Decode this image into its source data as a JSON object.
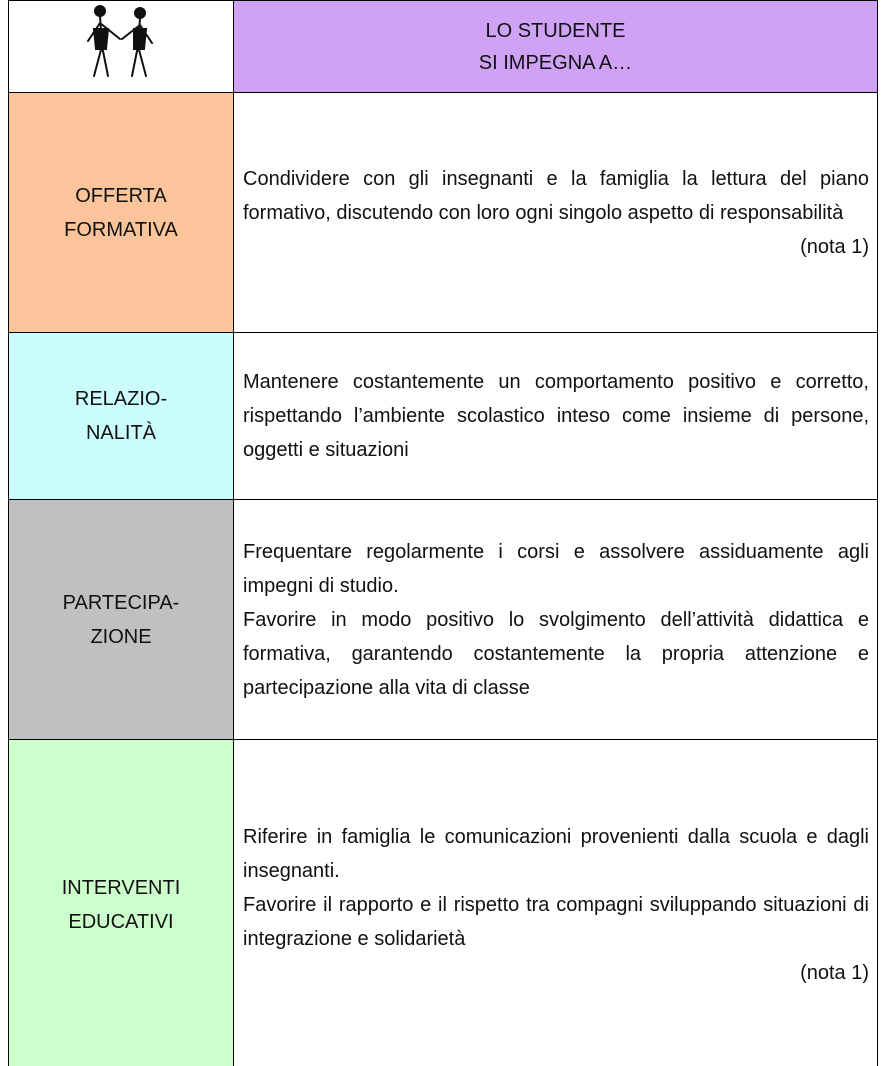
{
  "header": {
    "title_lines": [
      "LO STUDENTE",
      "SI IMPEGNA A…"
    ]
  },
  "rows": [
    {
      "label_lines": [
        "OFFERTA",
        "FORMATIVA"
      ],
      "paragraphs": [
        "Condividere con gli insegnanti e la famiglia la lettura del piano formativo, discutendo con loro ogni singolo aspetto di responsabilità"
      ],
      "note": "(nota 1)"
    },
    {
      "label_lines": [
        "RELAZIO-",
        "NALITÀ"
      ],
      "paragraphs": [
        "Mantenere costantemente un comportamento positivo e corretto, rispettando l’ambiente scolastico inteso come insieme di persone, oggetti e situazioni"
      ]
    },
    {
      "label_lines": [
        "PARTECIPA-",
        "ZIONE"
      ],
      "paragraphs": [
        "Frequentare regolarmente i corsi e assolvere assiduamente agli impegni di studio.",
        "Favorire in modo positivo lo svolgimento dell’attività didattica e formativa, garantendo costantemente la propria attenzione e partecipazione alla vita di classe"
      ]
    },
    {
      "label_lines": [
        "INTERVENTI",
        "EDUCATIVI"
      ],
      "paragraphs": [
        "Riferire in famiglia le comunicazioni provenienti dalla scuola e dagli insegnanti.",
        "Favorire il rapporto e il rispetto tra compagni sviluppando situazioni di integrazione e solidarietà"
      ],
      "note": "(nota 1)"
    }
  ]
}
